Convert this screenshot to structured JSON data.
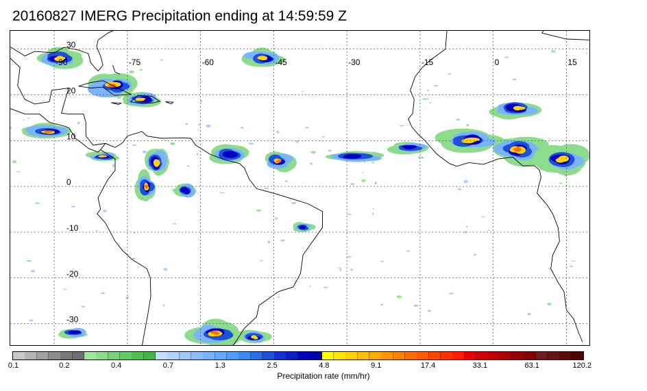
{
  "title": "20160827 IMERG Precipitation ending at 14:59:59 Z",
  "map": {
    "lon_labels": [
      "-90",
      "-75",
      "-60",
      "-45",
      "-30",
      "-15",
      "0",
      "15"
    ],
    "lat_labels": [
      "30",
      "20",
      "10",
      "0",
      "-10",
      "-20",
      "-30"
    ],
    "lon_values": [
      -90,
      -75,
      -60,
      -45,
      -30,
      -15,
      0,
      15
    ],
    "lat_values": [
      30,
      20,
      10,
      0,
      -10,
      -20,
      -30
    ],
    "extent": {
      "lon_min": -99,
      "lon_max": 20,
      "lat_min": -35,
      "lat_max": 34
    },
    "gridlines": "dotted",
    "coastline_color": "#000000",
    "precip_regions": [
      {
        "name": "gulf-of-mexico",
        "lon": -89,
        "lat": 28,
        "rx": 4,
        "ry": 2,
        "intensity": 3
      },
      {
        "name": "cuba-caribbean",
        "lon": -78,
        "lat": 22,
        "rx": 5,
        "ry": 2.5,
        "intensity": 4
      },
      {
        "name": "hispaniola",
        "lon": -72,
        "lat": 19,
        "rx": 4,
        "ry": 1.5,
        "intensity": 3
      },
      {
        "name": "atlantic-subtropical",
        "lon": -47,
        "lat": 28,
        "rx": 4,
        "ry": 2,
        "intensity": 3
      },
      {
        "name": "central-america-pacific",
        "lon": -91,
        "lat": 12,
        "rx": 5,
        "ry": 1.5,
        "intensity": 4
      },
      {
        "name": "panama",
        "lon": -80,
        "lat": 6.5,
        "rx": 3,
        "ry": 1,
        "intensity": 3
      },
      {
        "name": "colombia-venezuela",
        "lon": -69,
        "lat": 5,
        "rx": 2.5,
        "ry": 3,
        "intensity": 3
      },
      {
        "name": "amazon-west",
        "lon": -71,
        "lat": 0,
        "rx": 2,
        "ry": 3,
        "intensity": 4
      },
      {
        "name": "amazon-central",
        "lon": -63,
        "lat": -1,
        "rx": 2,
        "ry": 1.5,
        "intensity": 2
      },
      {
        "name": "guiana-coast",
        "lon": -54,
        "lat": 7,
        "rx": 4,
        "ry": 2,
        "intensity": 2
      },
      {
        "name": "itcz-west",
        "lon": -44,
        "lat": 5.5,
        "rx": 3,
        "ry": 2,
        "intensity": 4
      },
      {
        "name": "itcz-mid",
        "lon": -29,
        "lat": 6.5,
        "rx": 6,
        "ry": 1.3,
        "intensity": 2
      },
      {
        "name": "itcz-east",
        "lon": -17,
        "lat": 8.5,
        "rx": 4,
        "ry": 1.2,
        "intensity": 2
      },
      {
        "name": "west-africa",
        "lon": -5,
        "lat": 10,
        "rx": 6,
        "ry": 2.5,
        "intensity": 3
      },
      {
        "name": "nigeria",
        "lon": 5,
        "lat": 8,
        "rx": 5,
        "ry": 3,
        "intensity": 4
      },
      {
        "name": "central-africa",
        "lon": 14,
        "lat": 6,
        "rx": 5,
        "ry": 3,
        "intensity": 3
      },
      {
        "name": "sahel",
        "lon": 5,
        "lat": 17,
        "rx": 5,
        "ry": 2,
        "intensity": 3
      },
      {
        "name": "south-atlantic-low",
        "lon": -57,
        "lat": -32,
        "rx": 5,
        "ry": 2.5,
        "intensity": 4
      },
      {
        "name": "south-atlantic-east",
        "lon": -49,
        "lat": -33,
        "rx": 3,
        "ry": 1.5,
        "intensity": 3
      },
      {
        "name": "pacific-south",
        "lon": -86,
        "lat": -32,
        "rx": 3,
        "ry": 1,
        "intensity": 2
      },
      {
        "name": "brazil-east-coast",
        "lon": -39,
        "lat": -9,
        "rx": 2,
        "ry": 1,
        "intensity": 2
      }
    ]
  },
  "colorbar": {
    "colors": [
      "#c8c8c8",
      "#b4b4b4",
      "#a0a0a0",
      "#8c8c8c",
      "#787878",
      "#6e6e6e",
      "#a0e6a0",
      "#8cdc8c",
      "#78d278",
      "#64c864",
      "#50be50",
      "#46b446",
      "#c8dcff",
      "#b4d2ff",
      "#a0c8ff",
      "#8cbeff",
      "#78b4ff",
      "#64aaff",
      "#509bff",
      "#3c8cf0",
      "#286ee6",
      "#1e50dc",
      "#1432d2",
      "#0a1ec8",
      "#0000be",
      "#0000aa",
      "#ffff00",
      "#ffe600",
      "#ffd200",
      "#ffbe00",
      "#ffaa00",
      "#ff9600",
      "#ff8200",
      "#ff6e00",
      "#ff5a00",
      "#ff4600",
      "#ff3200",
      "#ff1e00",
      "#e60000",
      "#d20000",
      "#be0000",
      "#aa0000",
      "#960000",
      "#820000",
      "#6e1e1e",
      "#641414",
      "#5a0a0a",
      "#500000"
    ],
    "tick_labels": [
      "0.1",
      "0.2",
      "0.4",
      "0.7",
      "1.3",
      "2.5",
      "4.8",
      "9.1",
      "17.4",
      "33.1",
      "63.1",
      "120.2"
    ],
    "label": "Precipitation rate (mm/hr)"
  }
}
